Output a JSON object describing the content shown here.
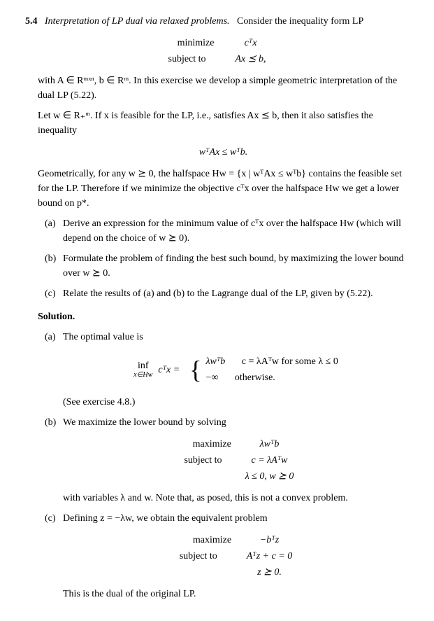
{
  "problem": {
    "number": "5.4",
    "title": "Interpretation of LP dual via relaxed problems.",
    "intro": "Consider the inequality form LP",
    "lp": {
      "minimize": "minimize",
      "min_expr": "cᵀx",
      "subject": "subject to",
      "sub_expr": "Ax ⪯ b,"
    },
    "with_text": "with A ∈ Rᵐˣⁿ, b ∈ Rᵐ. In this exercise we develop a simple geometric interpretation of the dual LP (5.22).",
    "let_text": "Let w ∈ R₊ᵐ. If x is feasible for the LP, i.e., satisfies Ax ⪯ b, then it also satisfies the inequality",
    "ineq": "wᵀAx ≤ wᵀb.",
    "geom_text": "Geometrically, for any w ⪰ 0, the halfspace Hw = {x | wᵀAx ≤ wᵀb} contains the feasible set for the LP. Therefore if we minimize the objective cᵀx over the halfspace Hw we get a lower bound on p*.",
    "parts": {
      "a": "Derive an expression for the minimum value of cᵀx over the halfspace Hw (which will depend on the choice of w ⪰ 0).",
      "b": "Formulate the problem of finding the best such bound, by maximizing the lower bound over w ⪰ 0.",
      "c": "Relate the results of (a) and (b) to the Lagrange dual of the LP, given by (5.22)."
    }
  },
  "solution": {
    "label": "Solution.",
    "a_intro": "The optimal value is",
    "a_eq_lhs_top": "inf",
    "a_eq_lhs_bot": "x∈Hw",
    "a_eq_lhs_expr": "cᵀx =",
    "a_case1_expr": "λwᵀb",
    "a_case1_cond": "c = λAᵀw for some λ ≤ 0",
    "a_case2_expr": "−∞",
    "a_case2_cond": "otherwise.",
    "a_ref": "(See exercise 4.8.)",
    "b_intro": "We maximize the lower bound by solving",
    "b_prob": {
      "maximize": "maximize",
      "max_expr": "λwᵀb",
      "subject": "subject to",
      "sub_expr1": "c = λAᵀw",
      "sub_expr2": "λ ≤ 0,    w ⪰ 0"
    },
    "b_note": "with variables λ and w. Note that, as posed, this is not a convex problem.",
    "c_intro": "Defining z = −λw, we obtain the equivalent problem",
    "c_prob": {
      "maximize": "maximize",
      "max_expr": "−bᵀz",
      "subject": "subject to",
      "sub_expr1": "Aᵀz + c = 0",
      "sub_expr2": "z ⪰ 0."
    },
    "c_concl": "This is the dual of the original LP."
  },
  "markers": {
    "a": "(a)",
    "b": "(b)",
    "c": "(c)"
  }
}
